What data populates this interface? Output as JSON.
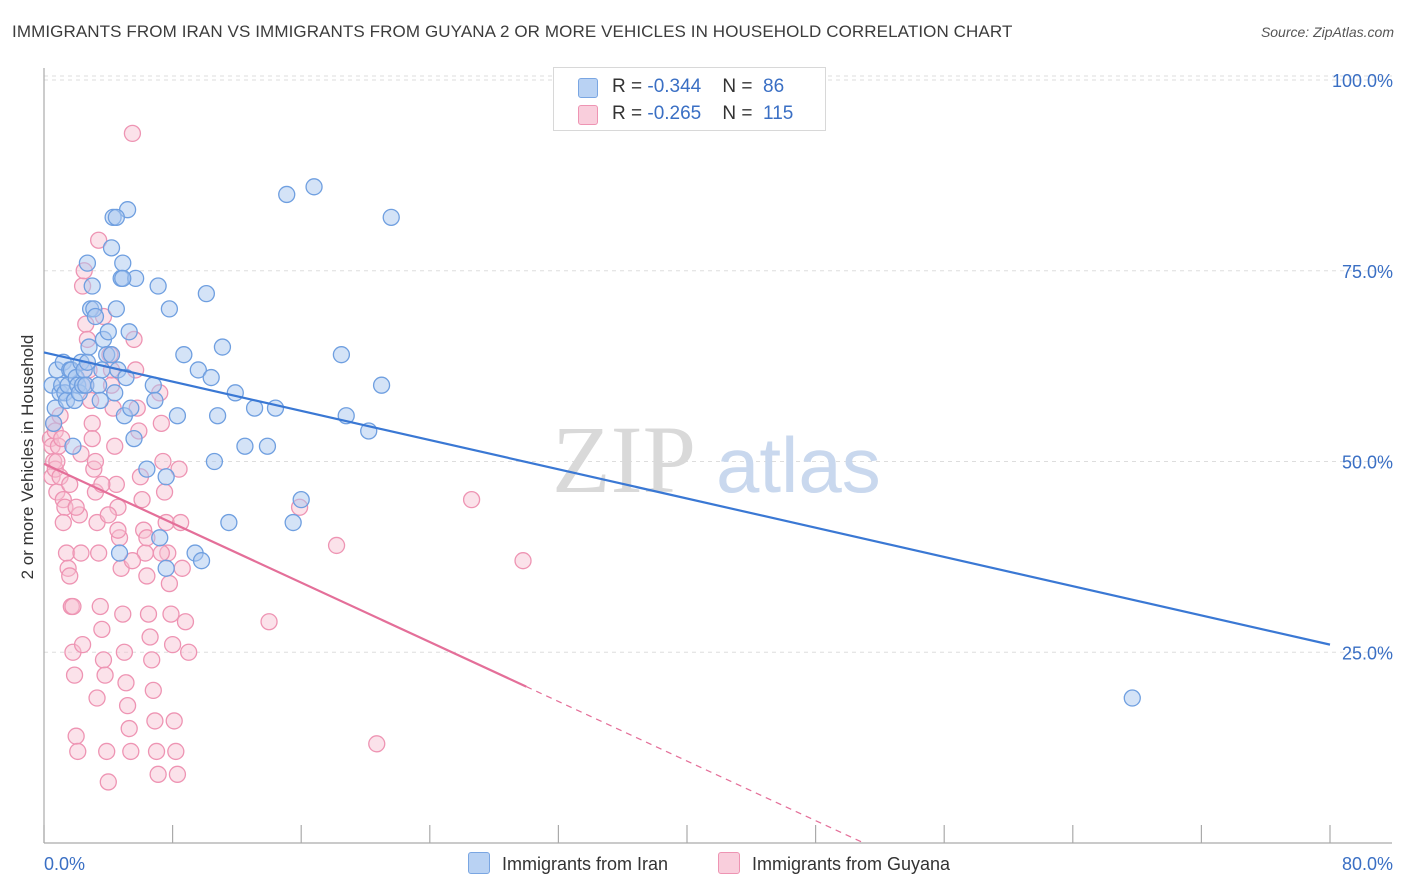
{
  "title": "IMMIGRANTS FROM IRAN VS IMMIGRANTS FROM GUYANA 2 OR MORE VEHICLES IN HOUSEHOLD CORRELATION CHART",
  "source": "Source: ZipAtlas.com",
  "watermark": {
    "zip": "ZIP",
    "atlas": "atlas"
  },
  "legend": {
    "iran": {
      "r_label": "R = ",
      "r_value": "-0.344",
      "n_label": "N = ",
      "n_value": "86"
    },
    "guyana": {
      "r_label": "R = ",
      "r_value": "-0.265",
      "n_label": "N = ",
      "n_value": "115"
    }
  },
  "bottom_legend": {
    "iran": "Immigrants from Iran",
    "guyana": "Immigrants from Guyana"
  },
  "colors": {
    "iran_fill": "#a9c7ef",
    "iran_stroke": "#6f9fe0",
    "iran_line": "#3a78d4",
    "guyana_fill": "#f6bfd1",
    "guyana_stroke": "#ee94b3",
    "guyana_line": "#e46f99",
    "axis_text": "#3a6fc4",
    "grid": "#dddddd"
  },
  "chart_data": {
    "type": "scatter",
    "title": "IMMIGRANTS FROM IRAN VS IMMIGRANTS FROM GUYANA 2 OR MORE VEHICLES IN HOUSEHOLD CORRELATION CHART",
    "xlabel": "",
    "ylabel": "2 or more Vehicles in Household",
    "xlim": [
      0,
      80
    ],
    "ylim": [
      0,
      100
    ],
    "x_tick_labels": [
      "0.0%",
      "80.0%"
    ],
    "y_ticks": [
      25,
      50,
      75,
      100
    ],
    "y_tick_labels": [
      "25.0%",
      "50.0%",
      "75.0%",
      "100.0%"
    ],
    "grid": true,
    "series": [
      {
        "name": "Immigrants from Iran",
        "r": -0.344,
        "n": 86,
        "trend": {
          "x": [
            0,
            80
          ],
          "y": [
            64.3,
            26.0
          ]
        },
        "points": [
          [
            0.5,
            60
          ],
          [
            0.6,
            55
          ],
          [
            0.7,
            57
          ],
          [
            0.8,
            62
          ],
          [
            1.0,
            59
          ],
          [
            1.1,
            60
          ],
          [
            1.2,
            63
          ],
          [
            1.3,
            59
          ],
          [
            1.4,
            58
          ],
          [
            1.5,
            60
          ],
          [
            1.6,
            62
          ],
          [
            1.7,
            62
          ],
          [
            1.8,
            52
          ],
          [
            1.9,
            58
          ],
          [
            2.0,
            61
          ],
          [
            2.1,
            60
          ],
          [
            2.2,
            59
          ],
          [
            2.3,
            63
          ],
          [
            2.4,
            60
          ],
          [
            2.5,
            62
          ],
          [
            2.6,
            60
          ],
          [
            2.7,
            63
          ],
          [
            2.8,
            65
          ],
          [
            2.9,
            70
          ],
          [
            3.0,
            73
          ],
          [
            3.1,
            70
          ],
          [
            3.2,
            69
          ],
          [
            3.4,
            60
          ],
          [
            3.5,
            58
          ],
          [
            3.6,
            62
          ],
          [
            3.7,
            66
          ],
          [
            2.7,
            76
          ],
          [
            3.9,
            64
          ],
          [
            4.0,
            67
          ],
          [
            4.2,
            64
          ],
          [
            4.4,
            59
          ],
          [
            4.5,
            70
          ],
          [
            4.6,
            62
          ],
          [
            4.8,
            74
          ],
          [
            4.9,
            76
          ],
          [
            5.0,
            56
          ],
          [
            5.1,
            61
          ],
          [
            5.3,
            67
          ],
          [
            5.4,
            57
          ],
          [
            5.6,
            53
          ],
          [
            5.7,
            74
          ],
          [
            6.4,
            49
          ],
          [
            6.8,
            60
          ],
          [
            6.9,
            58
          ],
          [
            7.1,
            73
          ],
          [
            7.6,
            48
          ],
          [
            7.8,
            70
          ],
          [
            8.3,
            56
          ],
          [
            8.7,
            64
          ],
          [
            9.6,
            62
          ],
          [
            10.1,
            72
          ],
          [
            10.4,
            61
          ],
          [
            10.6,
            50
          ],
          [
            10.8,
            56
          ],
          [
            11.1,
            65
          ],
          [
            11.5,
            42
          ],
          [
            11.9,
            59
          ],
          [
            12.5,
            52
          ],
          [
            13.1,
            57
          ],
          [
            13.9,
            52
          ],
          [
            14.4,
            57
          ],
          [
            15.1,
            85
          ],
          [
            15.5,
            42
          ],
          [
            16.0,
            45
          ],
          [
            16.8,
            86
          ],
          [
            18.5,
            64
          ],
          [
            18.8,
            56
          ],
          [
            20.2,
            54
          ],
          [
            21.0,
            60
          ],
          [
            21.6,
            82
          ],
          [
            4.7,
            38
          ],
          [
            7.6,
            36
          ],
          [
            9.4,
            38
          ],
          [
            9.8,
            37
          ],
          [
            5.2,
            83
          ],
          [
            4.2,
            78
          ],
          [
            4.3,
            82
          ],
          [
            4.5,
            82
          ],
          [
            4.9,
            74
          ],
          [
            7.2,
            40
          ],
          [
            67.7,
            19
          ]
        ]
      },
      {
        "name": "Immigrants from Guyana",
        "r": -0.265,
        "n": 115,
        "trend": {
          "x": [
            0,
            30
          ],
          "y": [
            49.7,
            20.5
          ]
        },
        "trend_dashed": {
          "x": [
            30,
            51
          ],
          "y": [
            20.5,
            0
          ]
        },
        "points": [
          [
            0.4,
            53
          ],
          [
            0.5,
            48
          ],
          [
            0.5,
            52
          ],
          [
            0.6,
            55
          ],
          [
            0.6,
            50
          ],
          [
            0.7,
            49
          ],
          [
            0.7,
            54
          ],
          [
            0.8,
            50
          ],
          [
            0.8,
            46
          ],
          [
            0.9,
            52
          ],
          [
            1.0,
            48
          ],
          [
            1.0,
            56
          ],
          [
            1.1,
            53
          ],
          [
            1.2,
            45
          ],
          [
            1.3,
            44
          ],
          [
            1.4,
            38
          ],
          [
            1.5,
            36
          ],
          [
            1.6,
            35
          ],
          [
            1.7,
            31
          ],
          [
            1.8,
            25
          ],
          [
            1.9,
            22
          ],
          [
            2.0,
            14
          ],
          [
            2.1,
            12
          ],
          [
            2.2,
            43
          ],
          [
            2.3,
            38
          ],
          [
            2.4,
            73
          ],
          [
            2.5,
            75
          ],
          [
            2.6,
            68
          ],
          [
            2.7,
            66
          ],
          [
            2.8,
            62
          ],
          [
            2.9,
            58
          ],
          [
            3.0,
            55
          ],
          [
            3.1,
            49
          ],
          [
            3.2,
            46
          ],
          [
            3.3,
            42
          ],
          [
            3.4,
            38
          ],
          [
            3.5,
            31
          ],
          [
            3.6,
            28
          ],
          [
            3.7,
            24
          ],
          [
            3.8,
            22
          ],
          [
            3.9,
            12
          ],
          [
            4.0,
            8
          ],
          [
            4.1,
            64
          ],
          [
            4.2,
            60
          ],
          [
            4.3,
            57
          ],
          [
            4.4,
            52
          ],
          [
            4.5,
            47
          ],
          [
            4.6,
            44
          ],
          [
            4.7,
            40
          ],
          [
            4.8,
            36
          ],
          [
            4.9,
            30
          ],
          [
            5.0,
            25
          ],
          [
            5.1,
            21
          ],
          [
            5.2,
            18
          ],
          [
            5.3,
            15
          ],
          [
            5.4,
            12
          ],
          [
            5.5,
            93
          ],
          [
            5.6,
            66
          ],
          [
            5.7,
            62
          ],
          [
            5.8,
            57
          ],
          [
            5.9,
            54
          ],
          [
            6.0,
            48
          ],
          [
            6.1,
            45
          ],
          [
            6.2,
            41
          ],
          [
            6.3,
            38
          ],
          [
            6.4,
            35
          ],
          [
            6.5,
            30
          ],
          [
            6.6,
            27
          ],
          [
            6.7,
            24
          ],
          [
            6.8,
            20
          ],
          [
            6.9,
            16
          ],
          [
            7.0,
            12
          ],
          [
            7.1,
            9
          ],
          [
            7.2,
            59
          ],
          [
            7.3,
            55
          ],
          [
            7.4,
            50
          ],
          [
            7.5,
            46
          ],
          [
            7.6,
            42
          ],
          [
            7.7,
            38
          ],
          [
            7.8,
            34
          ],
          [
            7.9,
            30
          ],
          [
            8.0,
            26
          ],
          [
            8.1,
            16
          ],
          [
            8.2,
            12
          ],
          [
            8.3,
            9
          ],
          [
            8.4,
            49
          ],
          [
            8.5,
            42
          ],
          [
            8.6,
            36
          ],
          [
            8.8,
            29
          ],
          [
            9.0,
            25
          ],
          [
            3.4,
            79
          ],
          [
            3.7,
            69
          ],
          [
            4.2,
            62
          ],
          [
            2.6,
            60
          ],
          [
            3.0,
            53
          ],
          [
            3.2,
            50
          ],
          [
            2.3,
            51
          ],
          [
            1.6,
            47
          ],
          [
            2.0,
            44
          ],
          [
            1.2,
            42
          ],
          [
            3.6,
            47
          ],
          [
            4.0,
            43
          ],
          [
            4.6,
            41
          ],
          [
            5.5,
            37
          ],
          [
            1.8,
            31
          ],
          [
            2.4,
            26
          ],
          [
            3.3,
            19
          ],
          [
            14.0,
            29
          ],
          [
            15.9,
            44
          ],
          [
            18.2,
            39
          ],
          [
            20.7,
            13
          ],
          [
            26.6,
            45
          ],
          [
            29.8,
            37
          ],
          [
            6.4,
            40
          ],
          [
            7.3,
            38
          ]
        ]
      }
    ]
  }
}
